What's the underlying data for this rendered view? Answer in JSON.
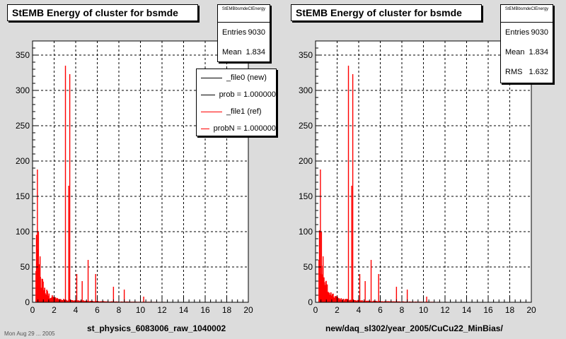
{
  "panels": [
    {
      "title": "StEMB Energy of cluster for bsmde",
      "x_title": "st_physics_6083006_raw_1040002",
      "stats": {
        "name": "StEMBbsmdeClEnergy",
        "rows": [
          {
            "label": "Entries",
            "value": "9030"
          },
          {
            "label": "Mean",
            "value": "1.834"
          }
        ]
      },
      "legend": [
        {
          "label": "_file0 (new)",
          "color": "#000000"
        },
        {
          "label": "prob = 1.000000",
          "color": "#000000"
        },
        {
          "label": "_file1 (ref)",
          "color": "#ff0000"
        },
        {
          "label": "probN = 1.000000",
          "color": "#ff0000"
        }
      ]
    },
    {
      "title": "StEMB Energy of cluster for bsmde",
      "x_title": "new/daq_sl302/year_2005/CuCu22_MinBias/",
      "stats": {
        "name": "StEMBbsmdeClEnergy",
        "rows": [
          {
            "label": "Entries",
            "value": "9030"
          },
          {
            "label": "Mean",
            "value": "1.834"
          },
          {
            "label": "RMS",
            "value": "1.632"
          }
        ]
      },
      "legend": []
    }
  ],
  "footnote": "Mon Aug 29 ... 2005",
  "colors": {
    "background": "#dcdcdc",
    "frame": "#ffffff",
    "hist": "#ff0000",
    "grid": "#000000"
  },
  "chart_data": [
    {
      "type": "histogram",
      "title": "StEMB Energy of cluster for bsmde",
      "xlabel": "st_physics_6083006_raw_1040002",
      "xlim": [
        0,
        20
      ],
      "ylim": [
        0,
        370
      ],
      "x_ticks": [
        0,
        2,
        4,
        6,
        8,
        10,
        12,
        14,
        16,
        18,
        20
      ],
      "y_ticks": [
        0,
        50,
        100,
        150,
        200,
        250,
        300,
        350
      ],
      "grid": true,
      "legend_position": "top-right",
      "series": [
        {
          "name": "_file0 (new)",
          "color": "#ff0000"
        },
        {
          "name": "_file1 (ref)",
          "color": "#ff0000"
        }
      ],
      "peaks": [
        {
          "x": 0.45,
          "y": 188
        },
        {
          "x": 0.55,
          "y": 100
        },
        {
          "x": 0.7,
          "y": 65
        },
        {
          "x": 3.05,
          "y": 335
        },
        {
          "x": 3.45,
          "y": 323
        },
        {
          "x": 3.35,
          "y": 165
        },
        {
          "x": 4.1,
          "y": 40
        },
        {
          "x": 4.6,
          "y": 30
        },
        {
          "x": 5.15,
          "y": 60
        },
        {
          "x": 5.85,
          "y": 40
        },
        {
          "x": 7.5,
          "y": 22
        },
        {
          "x": 8.5,
          "y": 18
        },
        {
          "x": 10.3,
          "y": 8
        }
      ]
    },
    {
      "type": "histogram",
      "title": "StEMB Energy of cluster for bsmde",
      "xlabel": "new/daq_sl302/year_2005/CuCu22_MinBias/",
      "xlim": [
        0,
        20
      ],
      "ylim": [
        0,
        370
      ],
      "x_ticks": [
        0,
        2,
        4,
        6,
        8,
        10,
        12,
        14,
        16,
        18,
        20
      ],
      "y_ticks": [
        0,
        50,
        100,
        150,
        200,
        250,
        300,
        350
      ],
      "grid": true,
      "series": [
        {
          "name": "",
          "color": "#ff0000"
        }
      ],
      "peaks": [
        {
          "x": 0.45,
          "y": 188
        },
        {
          "x": 0.55,
          "y": 100
        },
        {
          "x": 0.7,
          "y": 65
        },
        {
          "x": 3.05,
          "y": 335
        },
        {
          "x": 3.45,
          "y": 323
        },
        {
          "x": 3.35,
          "y": 165
        },
        {
          "x": 4.1,
          "y": 40
        },
        {
          "x": 4.6,
          "y": 30
        },
        {
          "x": 5.15,
          "y": 60
        },
        {
          "x": 5.85,
          "y": 40
        },
        {
          "x": 7.5,
          "y": 22
        },
        {
          "x": 8.5,
          "y": 18
        },
        {
          "x": 10.3,
          "y": 8
        }
      ]
    }
  ]
}
